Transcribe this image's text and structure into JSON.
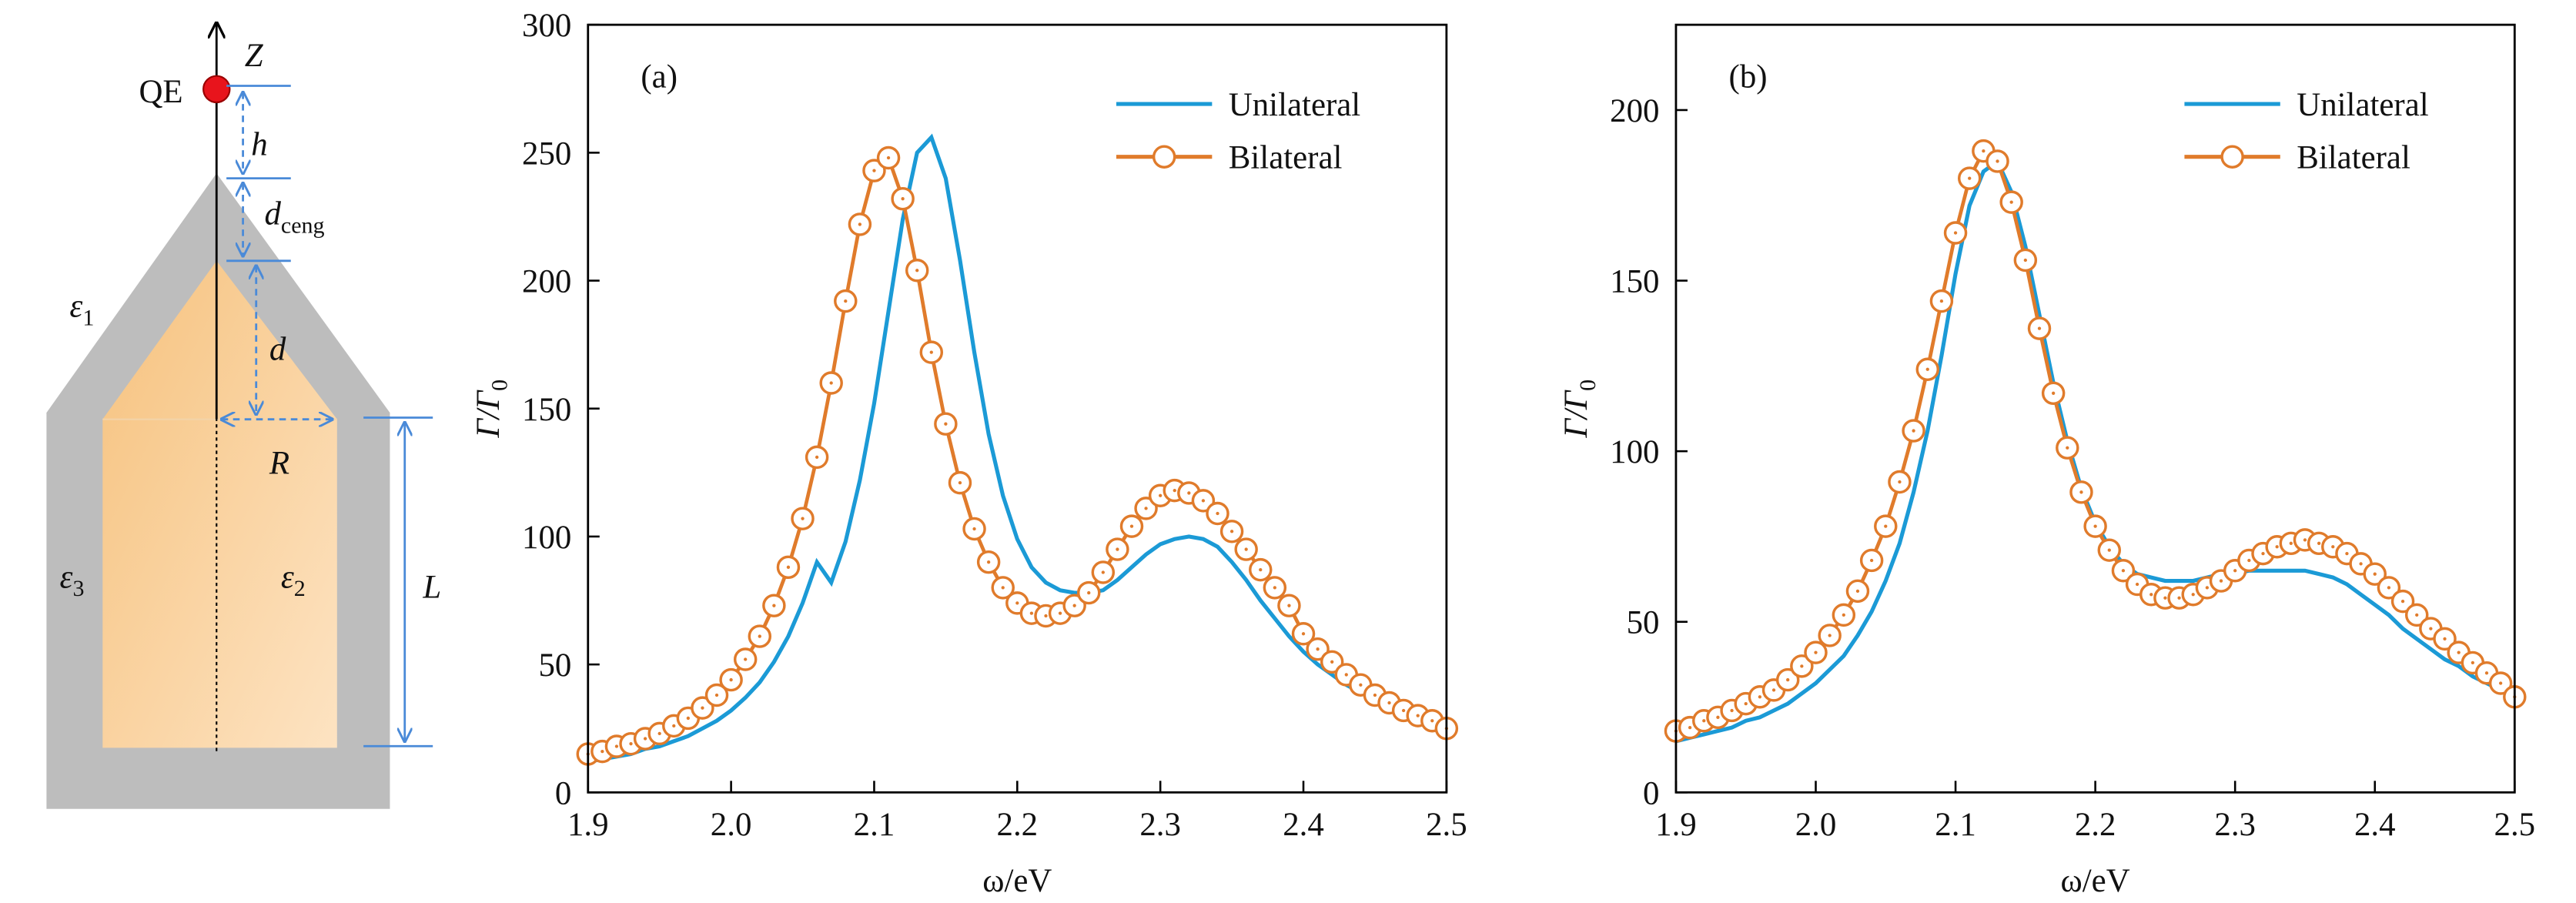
{
  "diagram": {
    "qe": "QE",
    "z": "Z",
    "h": "h",
    "dceng": {
      "main": "d",
      "sub": "ceng"
    },
    "eps1": {
      "main": "ε",
      "sub": "1"
    },
    "d": "d",
    "r": "R",
    "eps3": {
      "main": "ε",
      "sub": "3"
    },
    "eps2": {
      "main": "ε",
      "sub": "2"
    },
    "l": "L"
  },
  "chart_data": [
    {
      "type": "line",
      "panel_label": "(a)",
      "xlabel": "ω/eV",
      "ylabel": {
        "main": "Γ/Γ",
        "sub": "0"
      },
      "x": [
        1.9,
        1.91,
        1.92,
        1.93,
        1.94,
        1.95,
        1.96,
        1.97,
        1.98,
        1.99,
        2.0,
        2.01,
        2.02,
        2.03,
        2.04,
        2.05,
        2.06,
        2.07,
        2.08,
        2.09,
        2.1,
        2.11,
        2.12,
        2.13,
        2.14,
        2.15,
        2.16,
        2.17,
        2.18,
        2.19,
        2.2,
        2.21,
        2.22,
        2.23,
        2.24,
        2.25,
        2.26,
        2.27,
        2.28,
        2.29,
        2.3,
        2.31,
        2.32,
        2.33,
        2.34,
        2.35,
        2.36,
        2.37,
        2.38,
        2.39,
        2.4,
        2.41,
        2.42,
        2.43,
        2.44,
        2.45,
        2.46,
        2.47,
        2.48,
        2.49,
        2.5
      ],
      "series": [
        {
          "name": "Unilateral",
          "color": "#1b9ad6",
          "marker": "none",
          "values": [
            12,
            13,
            14,
            15,
            17,
            18,
            20,
            22,
            25,
            28,
            32,
            37,
            43,
            51,
            61,
            74,
            90,
            82,
            98,
            122,
            152,
            188,
            224,
            250,
            256,
            240,
            208,
            172,
            140,
            116,
            99,
            88,
            82,
            79,
            78,
            78,
            79,
            83,
            88,
            93,
            97,
            99,
            100,
            99,
            96,
            90,
            83,
            75,
            68,
            61,
            55,
            50,
            46,
            42,
            39,
            36,
            33,
            31,
            29,
            27,
            26
          ]
        },
        {
          "name": "Bilateral",
          "color": "#e07b2b",
          "marker": "circle",
          "values": [
            15,
            16,
            18,
            19,
            21,
            23,
            26,
            29,
            33,
            38,
            44,
            52,
            61,
            73,
            88,
            107,
            131,
            160,
            192,
            222,
            243,
            248,
            232,
            204,
            172,
            144,
            121,
            103,
            90,
            80,
            74,
            70,
            69,
            70,
            73,
            78,
            86,
            95,
            104,
            111,
            116,
            118,
            117,
            114,
            109,
            102,
            95,
            87,
            80,
            73,
            62,
            56,
            51,
            46,
            42,
            38,
            35,
            32,
            30,
            28,
            25
          ]
        }
      ],
      "xlim": [
        1.9,
        2.5
      ],
      "xticks": [
        1.9,
        {
          "value": 2,
          "label": "2.0"
        },
        2.1,
        2.2,
        2.3,
        2.4,
        2.5
      ],
      "ylim": [
        0,
        300
      ],
      "yticks": [
        0,
        50,
        100,
        150,
        200,
        250,
        300
      ],
      "legend": "upper right"
    },
    {
      "type": "line",
      "panel_label": "(b)",
      "xlabel": "ω/eV",
      "ylabel": {
        "main": "Γ/Γ",
        "sub": "0"
      },
      "x": [
        1.9,
        1.91,
        1.92,
        1.93,
        1.94,
        1.95,
        1.96,
        1.97,
        1.98,
        1.99,
        2.0,
        2.01,
        2.02,
        2.03,
        2.04,
        2.05,
        2.06,
        2.07,
        2.08,
        2.09,
        2.1,
        2.11,
        2.12,
        2.13,
        2.14,
        2.15,
        2.16,
        2.17,
        2.18,
        2.19,
        2.2,
        2.21,
        2.22,
        2.23,
        2.24,
        2.25,
        2.26,
        2.27,
        2.28,
        2.29,
        2.3,
        2.31,
        2.32,
        2.33,
        2.34,
        2.35,
        2.36,
        2.37,
        2.38,
        2.39,
        2.4,
        2.41,
        2.42,
        2.43,
        2.44,
        2.45,
        2.46,
        2.47,
        2.48,
        2.49,
        2.5
      ],
      "series": [
        {
          "name": "Unilateral",
          "color": "#1b9ad6",
          "marker": "none",
          "values": [
            15,
            16,
            17,
            18,
            19,
            21,
            22,
            24,
            26,
            29,
            32,
            36,
            40,
            46,
            53,
            62,
            73,
            88,
            106,
            128,
            152,
            172,
            182,
            185,
            176,
            160,
            140,
            120,
            103,
            89,
            79,
            72,
            67,
            64,
            63,
            62,
            62,
            62,
            63,
            64,
            64,
            65,
            65,
            65,
            65,
            65,
            64,
            63,
            61,
            58,
            55,
            52,
            48,
            45,
            42,
            39,
            37,
            34,
            32,
            30,
            28
          ]
        },
        {
          "name": "Bilateral",
          "color": "#e07b2b",
          "marker": "circle",
          "values": [
            18,
            19,
            21,
            22,
            24,
            26,
            28,
            30,
            33,
            37,
            41,
            46,
            52,
            59,
            68,
            78,
            91,
            106,
            124,
            144,
            164,
            180,
            188,
            185,
            173,
            156,
            136,
            117,
            101,
            88,
            78,
            71,
            65,
            61,
            58,
            57,
            57,
            58,
            60,
            62,
            65,
            68,
            70,
            72,
            73,
            74,
            73,
            72,
            70,
            67,
            64,
            60,
            56,
            52,
            48,
            45,
            41,
            38,
            35,
            32,
            28
          ]
        }
      ],
      "xlim": [
        1.9,
        2.5
      ],
      "xticks": [
        1.9,
        {
          "value": 2,
          "label": "2.0"
        },
        2.1,
        2.2,
        2.3,
        2.4,
        2.5
      ],
      "ylim": [
        0,
        225
      ],
      "yticks": [
        0,
        50,
        100,
        150,
        200
      ],
      "legend": "upper right"
    }
  ]
}
